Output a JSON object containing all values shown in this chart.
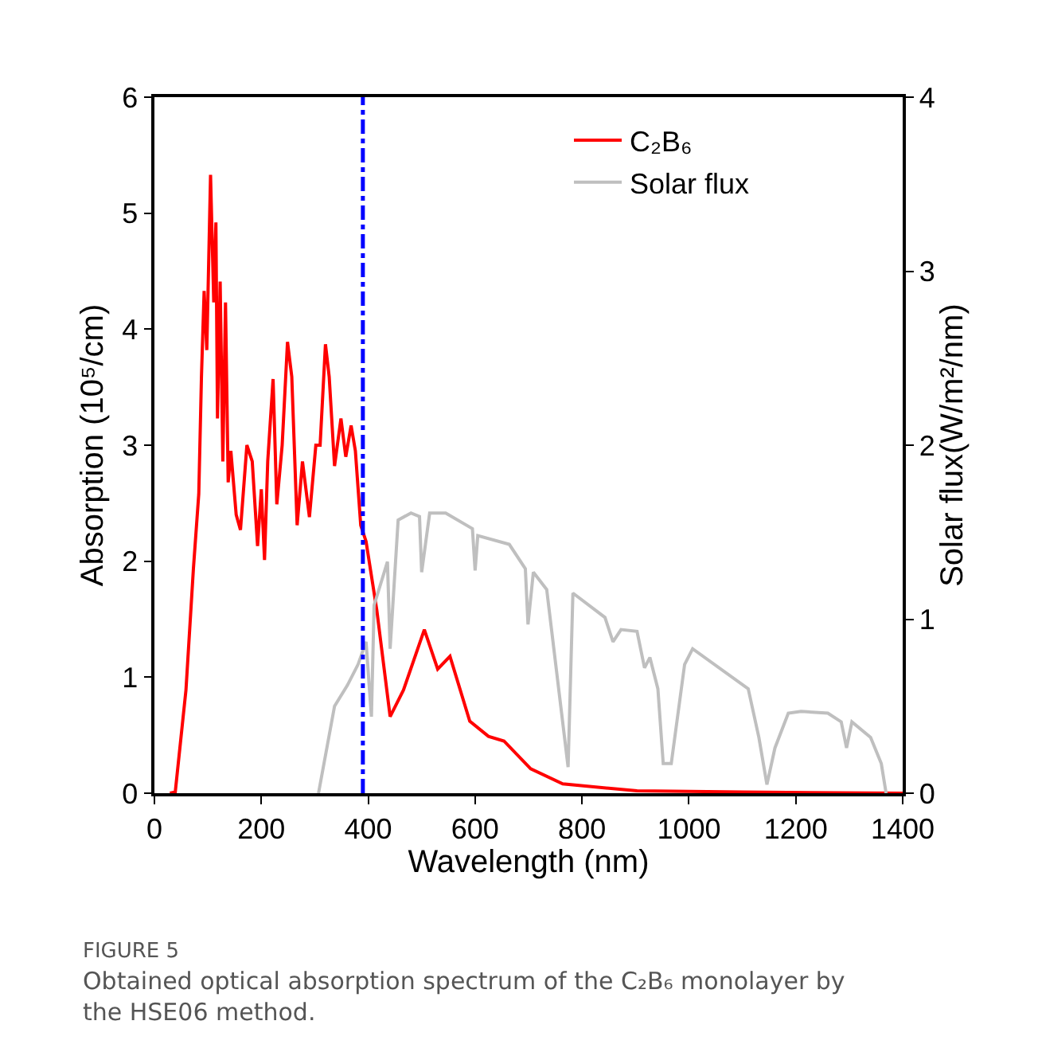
{
  "chart_data": {
    "type": "line",
    "xlabel": "Wavelength (nm)",
    "ylabel": "Absorption (10⁵/cm)",
    "y2label": "Solar flux(W/m²/nm)",
    "xlim": [
      0,
      1400
    ],
    "xticks": [
      0,
      200,
      400,
      600,
      800,
      1000,
      1200,
      1400
    ],
    "ylim": [
      0,
      6
    ],
    "yticks": [
      0,
      1,
      2,
      3,
      4,
      5,
      6
    ],
    "y2lim": [
      0,
      4
    ],
    "y2ticks": [
      0,
      1,
      2,
      3,
      4
    ],
    "grid": false,
    "legend": "top right",
    "marker": "none",
    "line_style": "solid",
    "series": [
      {
        "name": "C₂B₆",
        "color": "#ff0000",
        "x": [
          29,
          39,
          59,
          73,
          83,
          88,
          93,
          98,
          105,
          111,
          115,
          118,
          123,
          128,
          133,
          138,
          143,
          153,
          161,
          173,
          183,
          193,
          200,
          206,
          212,
          222,
          229,
          239,
          249,
          257,
          267,
          277,
          290,
          302,
          310,
          320,
          327,
          337,
          349,
          358,
          368,
          376,
          386,
          396,
          416,
          441,
          466,
          505,
          530,
          553,
          590,
          625,
          654,
          704,
          764,
          903,
          1100,
          1400
        ],
        "values": [
          0,
          0.01,
          0.89,
          1.94,
          2.58,
          3.59,
          4.33,
          3.82,
          5.33,
          4.23,
          4.92,
          3.23,
          4.41,
          2.86,
          4.23,
          2.68,
          2.95,
          2.4,
          2.27,
          3.0,
          2.86,
          2.13,
          2.62,
          2.01,
          2.86,
          3.57,
          2.49,
          3.0,
          3.89,
          3.59,
          2.31,
          2.86,
          2.38,
          3.0,
          3.0,
          3.87,
          3.59,
          2.82,
          3.23,
          2.9,
          3.17,
          2.95,
          2.31,
          2.17,
          1.58,
          0.66,
          0.89,
          1.41,
          1.07,
          1.18,
          0.62,
          0.49,
          0.45,
          0.21,
          0.08,
          0.02,
          0.01,
          0
        ]
      },
      {
        "name": "Solar flux",
        "color": "#bfbfbf",
        "axis": "y2",
        "x": [
          307,
          337,
          361,
          381,
          396,
          406,
          411,
          436,
          441,
          456,
          480,
          496,
          500,
          515,
          545,
          595,
          600,
          605,
          664,
          694,
          699,
          709,
          734,
          774,
          783,
          843,
          858,
          873,
          903,
          917,
          927,
          942,
          952,
          967,
          992,
          1007,
          1111,
          1131,
          1146,
          1161,
          1186,
          1210,
          1260,
          1285,
          1295,
          1305,
          1340,
          1360,
          1369
        ],
        "values": [
          0,
          0.5,
          0.62,
          0.74,
          0.87,
          0.44,
          1.08,
          1.33,
          0.83,
          1.57,
          1.61,
          1.59,
          1.27,
          1.61,
          1.61,
          1.52,
          1.28,
          1.48,
          1.43,
          1.29,
          0.97,
          1.27,
          1.17,
          0.15,
          1.15,
          1.01,
          0.87,
          0.94,
          0.93,
          0.72,
          0.78,
          0.6,
          0.17,
          0.17,
          0.74,
          0.83,
          0.6,
          0.32,
          0.05,
          0.26,
          0.46,
          0.47,
          0.46,
          0.41,
          0.26,
          0.41,
          0.32,
          0.17,
          0
        ]
      }
    ],
    "ref_lines": [
      {
        "axis": "x",
        "value": 390,
        "color": "#0000ff",
        "line_style": "dashdot"
      }
    ],
    "annotations": [
      "FIGURE 5",
      "Obtained optical absorption spectrum of the C₂B₆ monolayer by the HSE06 method."
    ]
  }
}
